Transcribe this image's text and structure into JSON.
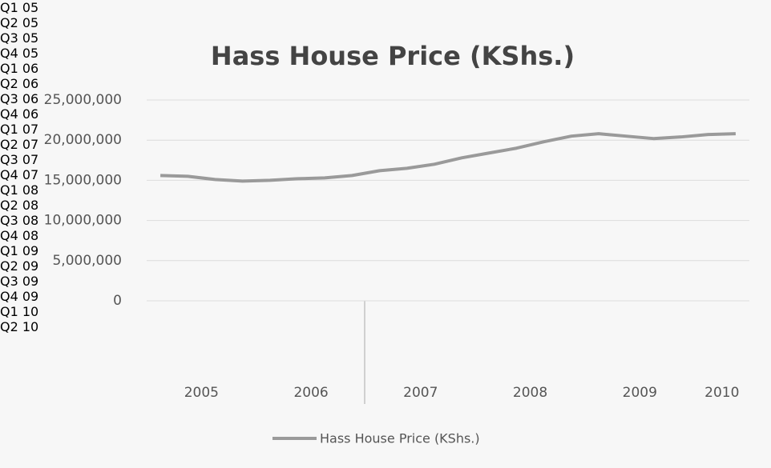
{
  "chart_data": {
    "type": "line",
    "title": "Hass House Price (KShs.)",
    "categories": [
      "Q1\n05",
      "Q2\n05",
      "Q3\n05",
      "Q4\n05",
      "Q1\n06",
      "Q2\n06",
      "Q3\n06",
      "Q4\n06",
      "Q1\n07",
      "Q2\n07",
      "Q3\n07",
      "Q4\n07",
      "Q1\n08",
      "Q2\n08",
      "Q3\n08",
      "Q4\n08",
      "Q1\n09",
      "Q2\n09",
      "Q3\n09",
      "Q4\n09",
      "Q1\n10",
      "Q2\n10"
    ],
    "year_labels": [
      "2005",
      "2006",
      "2007",
      "2008",
      "2009",
      "2010"
    ],
    "series": [
      {
        "name": "Hass House Price (KShs.)",
        "color": "#9a9a9a",
        "values": [
          15600000,
          15500000,
          15100000,
          14900000,
          15000000,
          15200000,
          15300000,
          15600000,
          16200000,
          16500000,
          17000000,
          17800000,
          18400000,
          19000000,
          19800000,
          20500000,
          20800000,
          20500000,
          20200000,
          20400000,
          20700000,
          20800000
        ]
      }
    ],
    "ylim": [
      0,
      25000000
    ],
    "yticks": [
      0,
      {
        "value": 5000000,
        "label": "5,000,000"
      },
      {
        "value": 10000000,
        "label": "10,000,000"
      },
      {
        "value": 15000000,
        "label": "15,000,000"
      },
      {
        "value": 20000000,
        "label": "20,000,000"
      },
      {
        "value": 25000000,
        "label": "25,000,000"
      }
    ],
    "grid": true,
    "legend": "bottom"
  }
}
